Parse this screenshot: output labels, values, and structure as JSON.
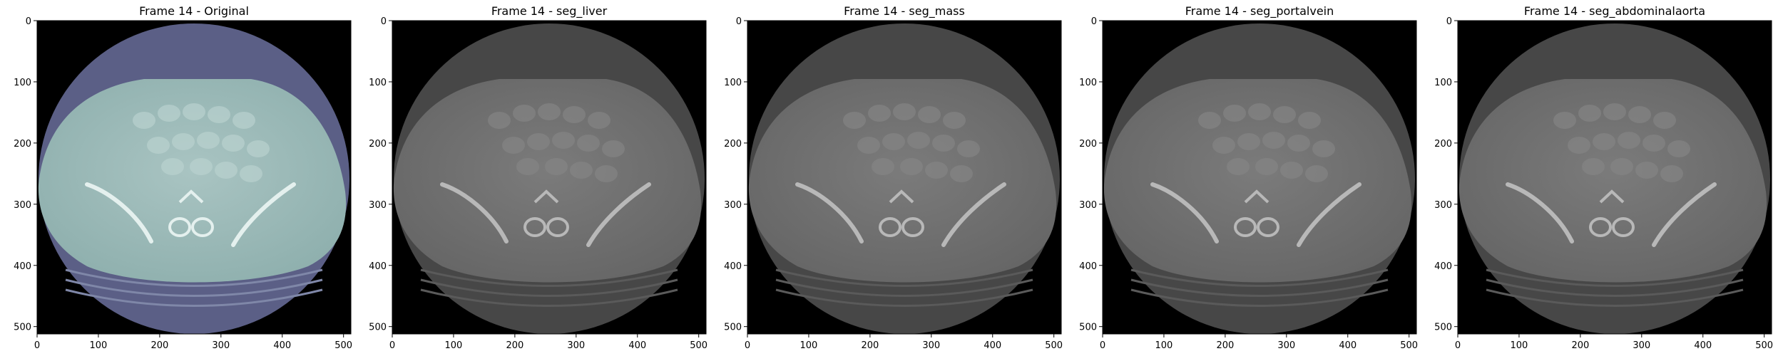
{
  "figure": {
    "panels": [
      {
        "title": "Frame 14 - Original",
        "colormap": "bone"
      },
      {
        "title": "Frame 14 - seg_liver",
        "colormap": "gray"
      },
      {
        "title": "Frame 14 - seg_mass",
        "colormap": "gray"
      },
      {
        "title": "Frame 14 - seg_portalvein",
        "colormap": "gray"
      },
      {
        "title": "Frame 14 - seg_abdominalaorta",
        "colormap": "gray"
      }
    ],
    "x_ticks": [
      "0",
      "100",
      "200",
      "300",
      "400",
      "500"
    ],
    "y_ticks": [
      "0",
      "100",
      "200",
      "300",
      "400",
      "500"
    ],
    "axis_range": [
      0,
      512
    ],
    "colors": {
      "background": "#000000",
      "bone_body": "#9ab7b5",
      "bone_fov": "#5b5f86",
      "gray_body": "#6f6f6f",
      "gray_fov": "#474747"
    }
  }
}
